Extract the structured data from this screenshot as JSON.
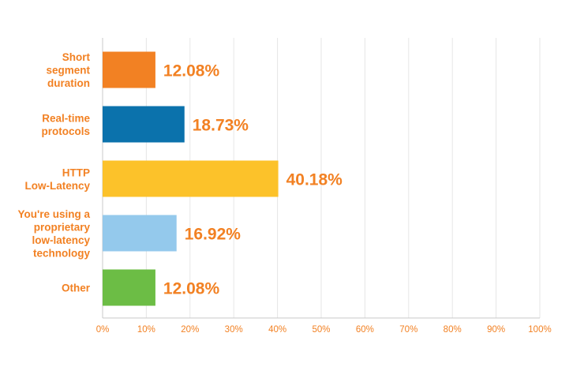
{
  "chart_data": {
    "type": "bar",
    "orientation": "horizontal",
    "categories": [
      [
        "Short",
        "segment",
        "duration"
      ],
      [
        "Real-time",
        "protocols"
      ],
      [
        "HTTP",
        "Low-Latency"
      ],
      [
        "You're using a",
        "proprietary",
        "low-latency",
        "technology"
      ],
      [
        "Other"
      ]
    ],
    "values": [
      12.08,
      18.73,
      40.18,
      16.92,
      12.08
    ],
    "value_labels": [
      "12.08%",
      "18.73%",
      "40.18%",
      "16.92%",
      "12.08%"
    ],
    "bar_colors": [
      "#f28123",
      "#0b72ac",
      "#fcc22a",
      "#94c9ec",
      "#6cbd45"
    ],
    "xlim": [
      0,
      100
    ],
    "x_ticks": [
      "0%",
      "10%",
      "20%",
      "30%",
      "40%",
      "50%",
      "60%",
      "70%",
      "80%",
      "90%",
      "100%"
    ],
    "grid": "vertical",
    "legend": "none",
    "title": "",
    "xlabel": "",
    "ylabel": ""
  },
  "colors": {
    "label_text": "#f28123",
    "grid": "#e6e6e6",
    "axis": "#c8c8c8"
  }
}
